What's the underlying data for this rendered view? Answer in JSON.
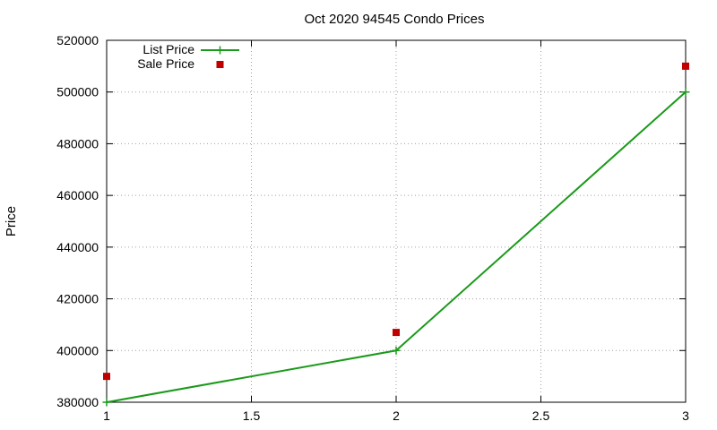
{
  "chart_data": {
    "type": "line",
    "title": "Oct 2020 94545 Condo Prices",
    "xlabel": "",
    "ylabel": "Price",
    "xlim": [
      1,
      3
    ],
    "ylim": [
      380000,
      520000
    ],
    "xticks": [
      1,
      1.5,
      2,
      2.5,
      3
    ],
    "xtick_labels": [
      "1",
      "1.5",
      "2",
      "2.5",
      "3"
    ],
    "yticks": [
      380000,
      400000,
      420000,
      440000,
      460000,
      480000,
      500000,
      520000
    ],
    "ytick_labels": [
      "380000",
      "400000",
      "420000",
      "440000",
      "460000",
      "480000",
      "500000",
      "520000"
    ],
    "grid": true,
    "legend_position": "top-left",
    "series": [
      {
        "name": "List Price",
        "style": "linespoints",
        "marker": "plus",
        "color": "#1a9a1a",
        "x": [
          1,
          2,
          3
        ],
        "y": [
          380000,
          400000,
          500000
        ]
      },
      {
        "name": "Sale Price",
        "style": "points",
        "marker": "square",
        "color": "#c00000",
        "x": [
          1,
          2,
          3
        ],
        "y": [
          390000,
          407000,
          510000
        ]
      }
    ]
  }
}
